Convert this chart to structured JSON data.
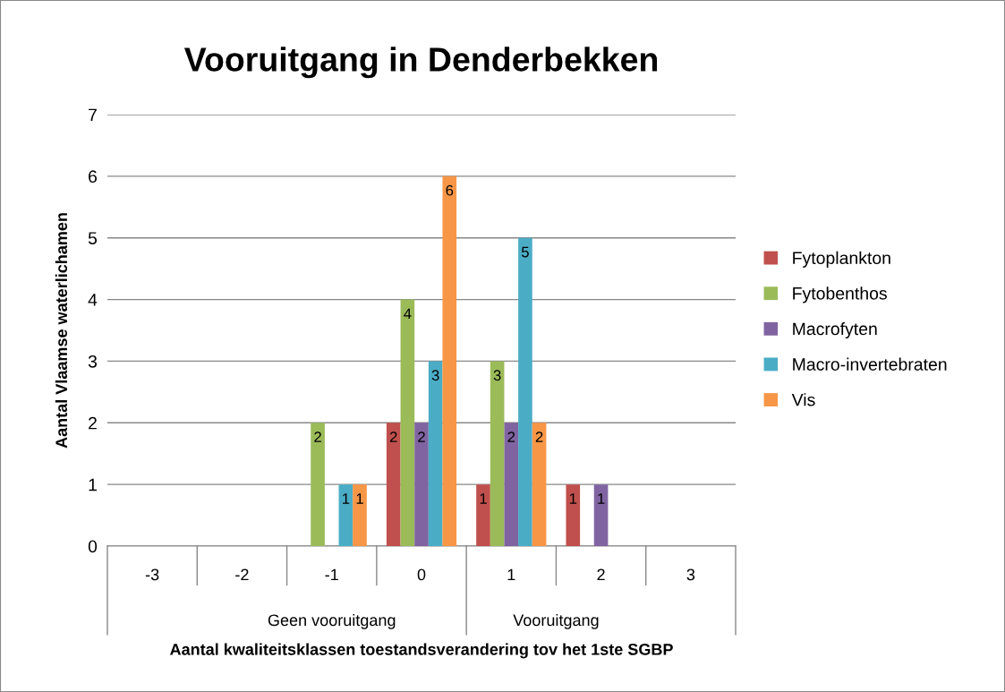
{
  "chart_data": {
    "type": "bar",
    "title": "Vooruitgang in Denderbekken",
    "xlabel": "Aantal kwaliteitsklassen toestandsverandering tov het 1ste SGBP",
    "ylabel": "Aantal Vlaamse waterlichamen",
    "categories": [
      "-3",
      "-2",
      "-1",
      "0",
      "1",
      "2",
      "3"
    ],
    "series": [
      {
        "name": "Fytoplankton",
        "color": "#c0504d",
        "values": [
          0,
          0,
          0,
          2,
          1,
          1,
          0
        ],
        "value_labels": [
          null,
          null,
          null,
          "2",
          "1",
          "1",
          null
        ]
      },
      {
        "name": "Fytobenthos",
        "color": "#9bbb59",
        "values": [
          0,
          0,
          2,
          4,
          3,
          0,
          0
        ],
        "value_labels": [
          null,
          null,
          "2",
          "4",
          "3",
          null,
          null
        ]
      },
      {
        "name": "Macrofyten",
        "color": "#8064a2",
        "values": [
          0,
          0,
          0,
          2,
          2,
          1,
          0
        ],
        "value_labels": [
          null,
          null,
          null,
          "2",
          "2",
          "1",
          null
        ]
      },
      {
        "name": "Macro-invertebraten",
        "color": "#4bacc6",
        "values": [
          0,
          0,
          1,
          3,
          5,
          0,
          0
        ],
        "value_labels": [
          null,
          null,
          "1",
          "3",
          "5",
          null,
          null
        ]
      },
      {
        "name": "Vis",
        "color": "#f79646",
        "values": [
          0,
          0,
          1,
          6,
          2,
          0,
          0
        ],
        "value_labels": [
          null,
          null,
          "1",
          "6",
          "2",
          null,
          null
        ]
      }
    ],
    "annotations": [
      "Geen vooruitgang",
      "Vooruitgang"
    ],
    "ylim": [
      0,
      7
    ],
    "yticks": [
      0,
      1,
      2,
      3,
      4,
      5,
      6,
      7
    ],
    "grid": "y",
    "legend": "right"
  }
}
